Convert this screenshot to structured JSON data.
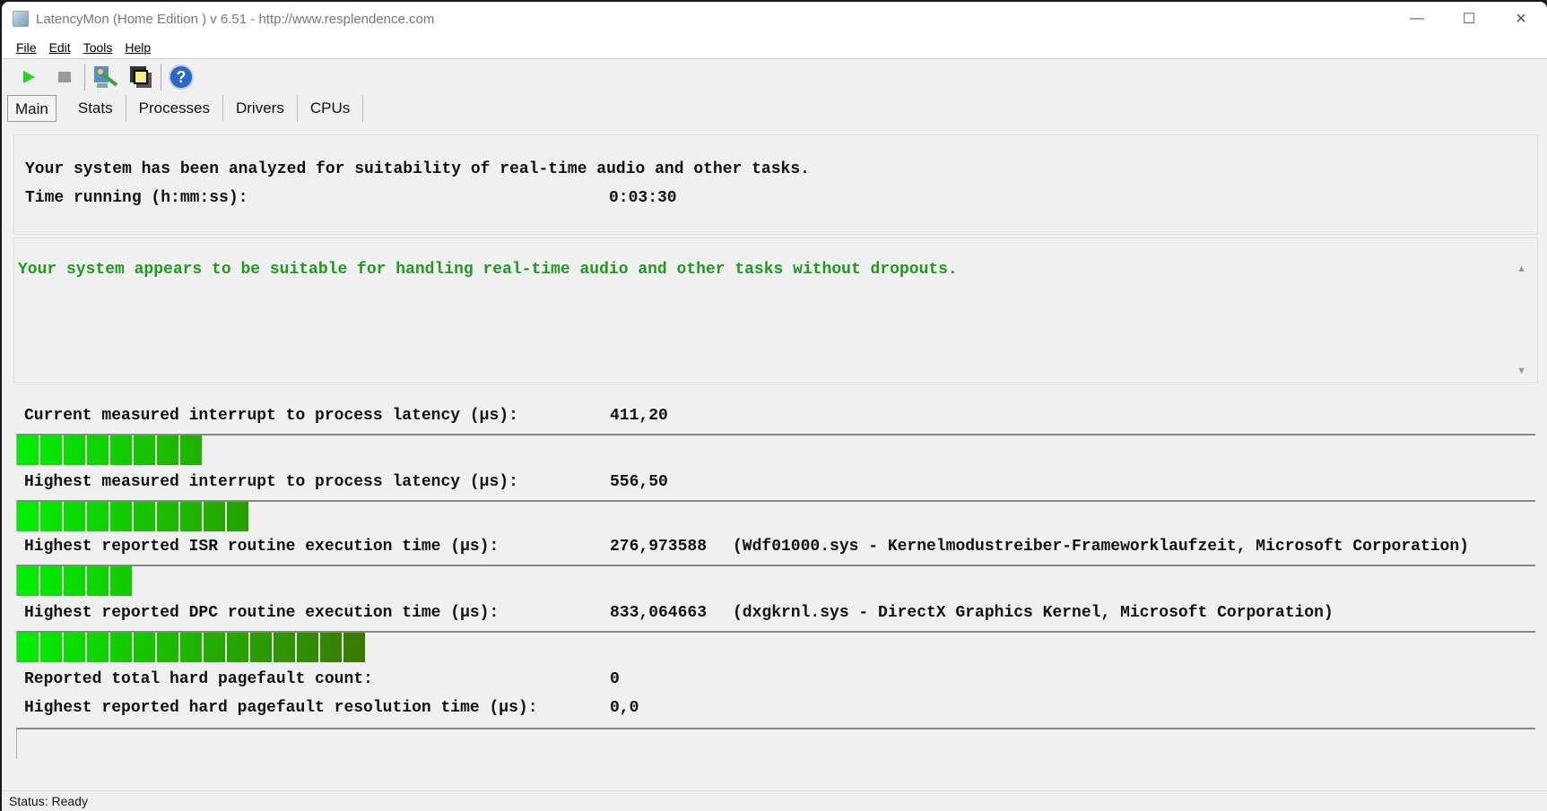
{
  "window": {
    "title": "LatencyMon  (Home Edition )  v 6.51 - http://www.resplendence.com",
    "minimize": "—",
    "maximize": "☐",
    "close": "✕"
  },
  "menu": [
    "File",
    "Edit",
    "Tools",
    "Help"
  ],
  "toolbar": [
    "play-icon",
    "stop-icon",
    "tools-icon",
    "windows-icon",
    "help-icon"
  ],
  "tabs": [
    "Main",
    "Stats",
    "Processes",
    "Drivers",
    "CPUs"
  ],
  "active_tab": "Main",
  "summary": {
    "line1": "Your system has been analyzed for suitability of real-time audio and other tasks.",
    "time_label": "Time running (h:mm:ss):",
    "time_value": "0:03:30"
  },
  "verdict": {
    "text": "Your system appears to be suitable for handling real-time audio and other tasks without dropouts.",
    "color": "#1e9a1e"
  },
  "metrics": [
    {
      "label": "Current measured interrupt to process latency (µs):",
      "value": "411,20",
      "detail": "",
      "segments": 8
    },
    {
      "label": "Highest measured interrupt to process latency (µs):",
      "value": "556,50",
      "detail": "",
      "segments": 10
    },
    {
      "label": "Highest reported ISR routine execution time (µs):",
      "value": "276,973588",
      "detail": "(Wdf01000.sys - Kernelmodustreiber-Frameworklaufzeit, Microsoft Corporation)",
      "segments": 5
    },
    {
      "label": "Highest reported DPC routine execution time (µs):",
      "value": "833,064663",
      "detail": "(dxgkrnl.sys - DirectX Graphics Kernel, Microsoft Corporation)",
      "segments": 15
    },
    {
      "label": "Reported total hard pagefault count:",
      "value": "0",
      "detail": ""
    },
    {
      "label": "Highest reported hard pagefault resolution time (µs):",
      "value": "0,0",
      "detail": "",
      "segments": 0
    }
  ],
  "status": "Status: Ready"
}
